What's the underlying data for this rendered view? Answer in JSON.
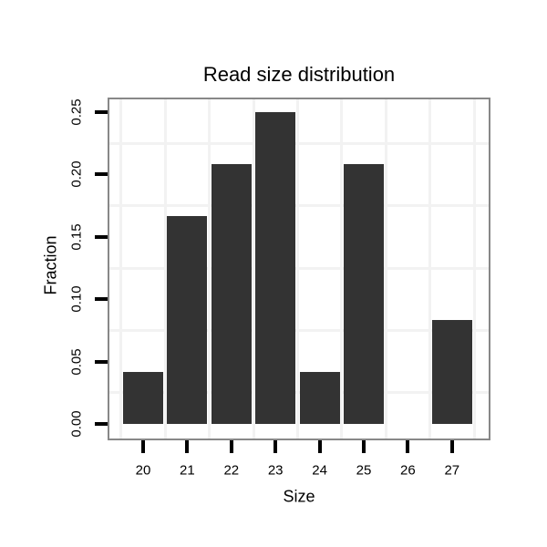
{
  "chart_data": {
    "type": "bar",
    "title": "Read size distribution",
    "xlabel": "Size",
    "ylabel": "Fraction",
    "categories": [
      "20",
      "21",
      "22",
      "23",
      "24",
      "25",
      "26",
      "27"
    ],
    "values": [
      0.0417,
      0.1667,
      0.2083,
      0.25,
      0.0417,
      0.2083,
      0,
      0.0833
    ],
    "y_tick_labels": [
      "0.00",
      "0.05",
      "0.10",
      "0.15",
      "0.20",
      "0.25"
    ],
    "ylim": [
      0,
      0.26
    ],
    "grid": "minor-only",
    "legend": "none",
    "colors": {
      "bar": "#333333",
      "panel_border": "#888888",
      "gridline": "#f2f2f2",
      "tick": "#000000",
      "text": "#000000",
      "background": "#ffffff"
    }
  }
}
